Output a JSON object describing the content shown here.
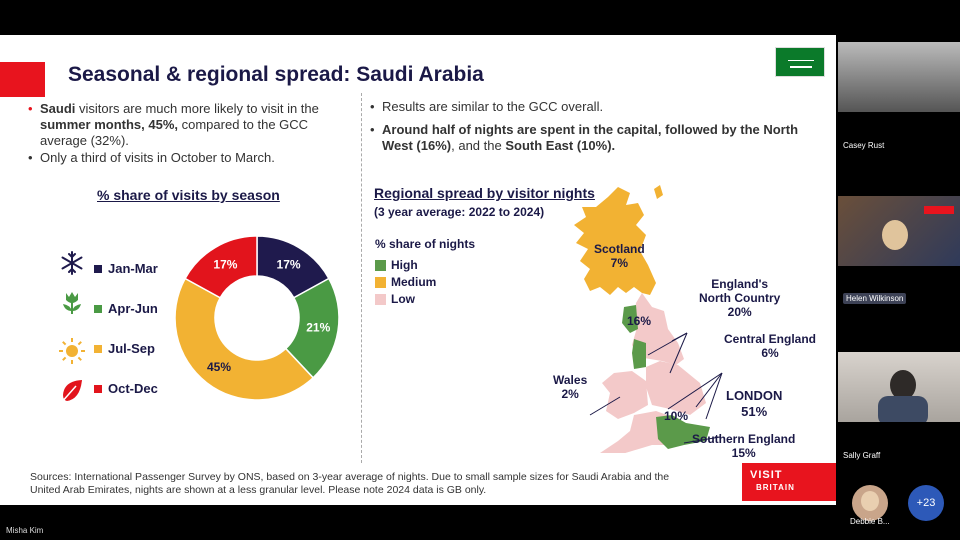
{
  "slide": {
    "title": "Seasonal & regional spread: Saudi Arabia",
    "left_bullets": {
      "b1_pre": "Saudi",
      "b1_mid": " visitors are much more likely to visit in the ",
      "b1_bold": "summer months, 45%,",
      "b1_post": " compared to the GCC average (32%).",
      "b2": "Only a third of visits in October to March."
    },
    "right_bullets": {
      "b1": "Results are similar to the GCC overall.",
      "b2_bold1": "Around half of nights are spent in the capital, followed by the North West (16%)",
      "b2_mid": ", and the ",
      "b2_bold2": "South East (10%)."
    },
    "season_chart": {
      "title": "% share of visits by season",
      "legend": [
        "Jan-Mar",
        "Apr-Jun",
        "Jul-Sep",
        "Oct-Dec"
      ],
      "icons": [
        "snowflake-icon",
        "tulip-icon",
        "sun-icon",
        "leaf-icon"
      ]
    },
    "region_chart": {
      "title": "Regional spread by visitor nights",
      "subtitle": "(3 year average: 2022 to 2024)",
      "legend_title": "% share of nights",
      "legend": [
        "High",
        "Medium",
        "Low"
      ],
      "labels": {
        "scotland": "Scotland",
        "scotland_val": "7%",
        "north": "England's",
        "north2": "North Country",
        "north_val": "20%",
        "nw_val": "16%",
        "central": "Central England",
        "central_val": "6%",
        "wales": "Wales",
        "wales_val": "2%",
        "london": "LONDON",
        "london_val": "51%",
        "se_val": "10%",
        "south": "Southern England",
        "south_val": "15%"
      }
    },
    "sources": "Sources: International Passenger Survey by ONS, based on 3-year average of nights. Due to small sample sizes for Saudi Arabia and the United Arab Emirates, nights are shown at a less granular level. Please note 2024 data is GB only.",
    "logo": {
      "line1": "VISIT",
      "line2": "BRITAIN"
    }
  },
  "participants": [
    {
      "name": "Casey Rust"
    },
    {
      "name": "Helen Wilkinson"
    },
    {
      "name": "Sally Graff"
    },
    {
      "name": "Debbie B..."
    }
  ],
  "more_count": "+23",
  "presenter": "Misha Kim",
  "colors": {
    "jan_mar": "#1f1a4d",
    "apr_jun": "#4a9a44",
    "jul_sep": "#f2b233",
    "oct_dec": "#e2141c",
    "high": "#5b9a4a",
    "medium": "#f2b233",
    "low": "#f3c9c9"
  },
  "chart_data": {
    "type": "pie",
    "title": "% share of visits by season",
    "categories": [
      "Jan-Mar",
      "Apr-Jun",
      "Jul-Sep",
      "Oct-Dec"
    ],
    "values": [
      17,
      21,
      45,
      17
    ],
    "labels": [
      "17%",
      "21%",
      "45%",
      "17%"
    ],
    "donut": true
  }
}
